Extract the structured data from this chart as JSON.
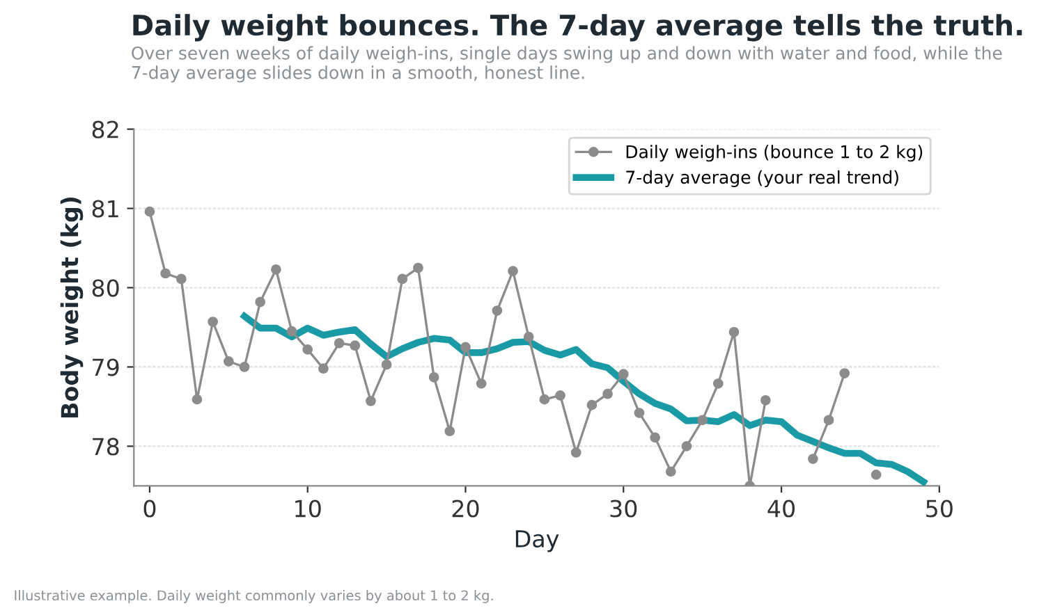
{
  "chart_data": {
    "type": "line",
    "title": "Daily weight bounces. The 7-day average tells the truth.",
    "subtitle": "Over seven weeks of daily weigh-ins, single days swing up and down with water and food, while the 7-day average slides down in a smooth, honest line.",
    "xlabel": "Day",
    "ylabel": "Body weight (kg)",
    "annotations": [
      "Illustrative example. Daily weight commonly varies by about 1 to 2 kg."
    ],
    "x": [
      0,
      1,
      2,
      3,
      4,
      5,
      6,
      7,
      8,
      9,
      10,
      11,
      12,
      13,
      14,
      15,
      16,
      17,
      18,
      19,
      20,
      21,
      22,
      23,
      24,
      25,
      26,
      27,
      28,
      29,
      30,
      31,
      32,
      33,
      34,
      35,
      36,
      37,
      38,
      39,
      40,
      41,
      42,
      43,
      44,
      45,
      46,
      47,
      48,
      49
    ],
    "series": [
      {
        "name": "Daily weigh-ins (bounce 1 to 2 kg)",
        "color": "#8c8c8c",
        "marker": "circle",
        "values": [
          80.96,
          80.18,
          80.11,
          78.59,
          79.57,
          79.07,
          79.0,
          79.82,
          80.23,
          79.45,
          79.22,
          78.98,
          79.3,
          79.27,
          78.57,
          79.03,
          80.11,
          80.25,
          78.87,
          78.19,
          79.25,
          78.79,
          79.71,
          80.21,
          79.38,
          78.59,
          78.64,
          77.92,
          78.52,
          78.66,
          78.91,
          78.42,
          78.11,
          77.68,
          78.0,
          78.33,
          78.79,
          79.44,
          77.5,
          78.58,
          null,
          null,
          77.84,
          78.33,
          78.92,
          null,
          77.64,
          null,
          null,
          null
        ]
      },
      {
        "name": "7-day average (your real trend)",
        "color": "#1a9aa4",
        "marker": "none",
        "values": [
          null,
          null,
          null,
          null,
          null,
          null,
          79.64,
          79.49,
          79.49,
          79.38,
          79.49,
          79.4,
          79.44,
          79.47,
          79.29,
          79.13,
          79.23,
          79.31,
          79.36,
          79.34,
          79.18,
          79.18,
          79.23,
          79.31,
          79.32,
          79.21,
          79.15,
          79.22,
          79.04,
          78.99,
          78.82,
          78.66,
          78.54,
          78.47,
          78.32,
          78.33,
          78.31,
          78.4,
          78.26,
          78.33,
          78.31,
          78.14,
          78.06,
          77.98,
          77.91,
          77.91,
          77.79,
          77.77,
          77.68,
          77.55
        ]
      }
    ],
    "xlim": [
      -1,
      50
    ],
    "xticks": [
      0,
      10,
      20,
      30,
      40,
      50
    ],
    "ylim": [
      77.5,
      82
    ],
    "yticks": [
      78,
      79,
      80,
      81,
      82
    ],
    "grid": "y",
    "legend": "top right"
  }
}
